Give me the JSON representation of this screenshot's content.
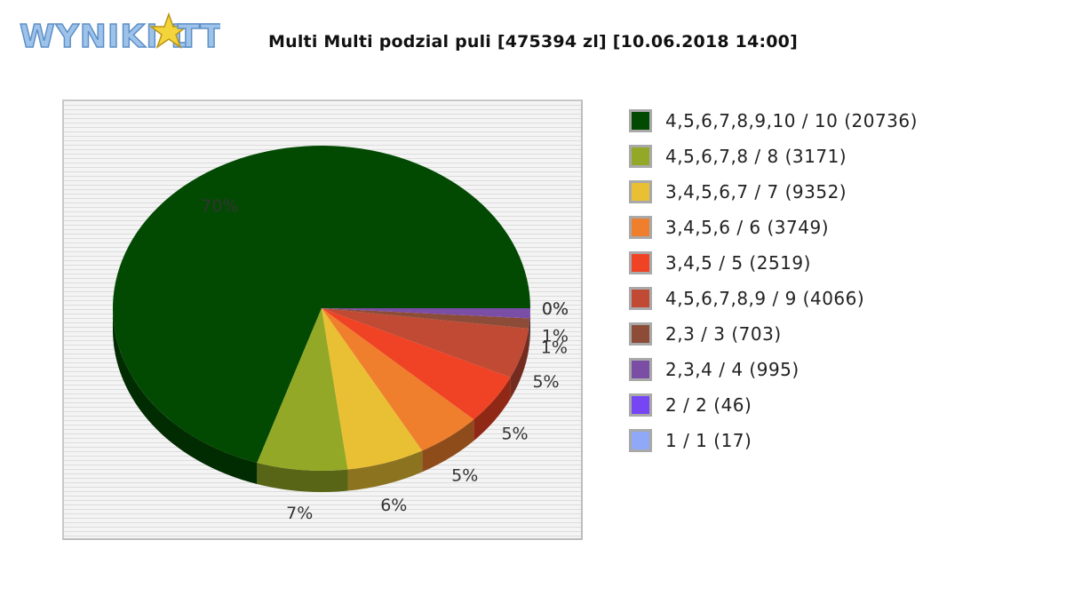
{
  "logo": {
    "text": "WYNIKI LOTTO"
  },
  "chart_data": {
    "type": "pie",
    "title": "Multi Multi podzial puli [475394 zl] [10.06.2018 14:00]",
    "legend_position": "right",
    "start_angle_deg": 0,
    "direction": "counterclockwise",
    "slices": [
      {
        "label": "4,5,6,7,8,9,10 / 10 (20736)",
        "value": 20736,
        "color": "#024a02",
        "pct_label": "70%"
      },
      {
        "label": "4,5,6,7,8 / 8 (3171)",
        "value": 3171,
        "color": "#93a826",
        "pct_label": "7%"
      },
      {
        "label": "3,4,5,6,7 / 7 (9352)",
        "value": 9352,
        "color": "#e9bf34",
        "pct_label": "6%"
      },
      {
        "label": "3,4,5,6 / 6 (3749)",
        "value": 3749,
        "color": "#ef7f2d",
        "pct_label": "5%"
      },
      {
        "label": "3,4,5 / 5 (2519)",
        "value": 2519,
        "color": "#f04325",
        "pct_label": "5%"
      },
      {
        "label": "4,5,6,7,8,9 / 9 (4066)",
        "value": 4066,
        "color": "#c04a34",
        "pct_label": "5%"
      },
      {
        "label": "2,3 / 3 (703)",
        "value": 703,
        "color": "#8c4c38",
        "pct_label": "1%"
      },
      {
        "label": "2,3,4 / 4 (995)",
        "value": 995,
        "color": "#7b4ea6",
        "pct_label": "1%"
      },
      {
        "label": "2 / 2 (46)",
        "value": 46,
        "color": "#7646f4",
        "pct_label": "0%"
      },
      {
        "label": "1 / 1 (17)",
        "value": 17,
        "color": "#8fa8f8",
        "pct_label": "0%"
      }
    ],
    "share_percent": [
      70,
      7,
      6,
      5,
      5,
      5,
      1,
      1,
      0,
      0
    ]
  }
}
